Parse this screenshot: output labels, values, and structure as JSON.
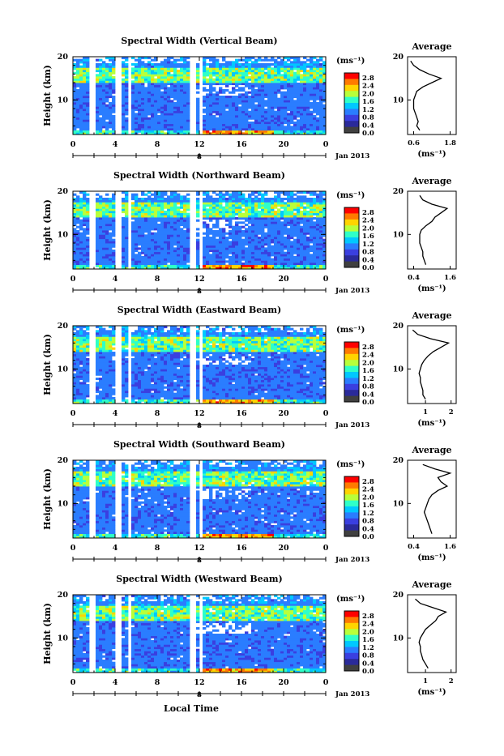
{
  "figure": {
    "xlabel": "Local Time",
    "date_label": "Jan 2013",
    "unit_label": "(ms⁻¹)",
    "average_title": "Average",
    "average_xlabel": "(ms⁻¹)",
    "ylabel": "Height (km)"
  },
  "colorbar": {
    "ticks": [
      "2.8",
      "2.4",
      "2.0",
      "1.6",
      "1.2",
      "0.8",
      "0.4",
      "0.0"
    ],
    "colors": [
      "#ff0000",
      "#ff7a00",
      "#ffd400",
      "#b8ff3a",
      "#2fffc8",
      "#00c8ff",
      "#2a7dff",
      "#3a3fe0",
      "#2a2a9a",
      "#404040"
    ]
  },
  "chart_data": [
    {
      "type": "heatmap",
      "title": "Spectral Width (Vertical Beam)",
      "x_ticks": [
        "0",
        "4",
        "8",
        "12",
        "16",
        "20",
        "0"
      ],
      "day_ticks": [
        "8"
      ],
      "xlim": [
        0,
        24
      ],
      "y_ticks": [
        "20",
        "10"
      ],
      "ylim": [
        2,
        20
      ],
      "gaps_hours": [
        [
          1.6,
          2.1
        ],
        [
          4.1,
          4.6
        ],
        [
          5.2,
          5.6
        ],
        [
          11.2,
          11.6
        ],
        [
          12.1,
          12.4
        ]
      ],
      "average": {
        "title": "Average",
        "x_ticks": [
          "0.6",
          "1.8"
        ],
        "xlim": [
          0.4,
          2.0
        ],
        "heights": [
          3,
          4,
          5,
          6,
          7,
          8,
          9,
          10,
          11,
          12,
          13,
          14,
          15,
          16,
          17,
          18,
          19
        ],
        "values": [
          0.8,
          0.7,
          0.75,
          0.7,
          0.65,
          0.6,
          0.6,
          0.6,
          0.65,
          0.7,
          0.9,
          1.2,
          1.5,
          1.1,
          0.8,
          0.6,
          0.5
        ]
      }
    },
    {
      "type": "heatmap",
      "title": "Spectral Width (Northward Beam)",
      "x_ticks": [
        "0",
        "4",
        "8",
        "12",
        "16",
        "20",
        "0"
      ],
      "day_ticks": [
        "8"
      ],
      "xlim": [
        0,
        24
      ],
      "y_ticks": [
        "20",
        "10"
      ],
      "ylim": [
        2,
        20
      ],
      "gaps_hours": [
        [
          1.6,
          2.1
        ],
        [
          4.1,
          4.6
        ],
        [
          5.2,
          5.6
        ],
        [
          11.2,
          11.6
        ],
        [
          12.1,
          12.4
        ]
      ],
      "average": {
        "title": "Average",
        "x_ticks": [
          "0.4",
          "1.6"
        ],
        "xlim": [
          0.2,
          1.8
        ],
        "heights": [
          3,
          4,
          5,
          6,
          7,
          8,
          9,
          10,
          11,
          12,
          13,
          14,
          15,
          16,
          17,
          18,
          19
        ],
        "values": [
          0.8,
          0.75,
          0.7,
          0.7,
          0.65,
          0.6,
          0.6,
          0.6,
          0.65,
          0.8,
          1.0,
          1.1,
          1.3,
          1.5,
          1.0,
          0.7,
          0.6
        ]
      }
    },
    {
      "type": "heatmap",
      "title": "Spectral Width (Eastward Beam)",
      "x_ticks": [
        "0",
        "4",
        "8",
        "12",
        "16",
        "20",
        "0"
      ],
      "day_ticks": [
        "8"
      ],
      "xlim": [
        0,
        24
      ],
      "y_ticks": [
        "20",
        "10"
      ],
      "ylim": [
        2,
        20
      ],
      "gaps_hours": [
        [
          1.6,
          2.1
        ],
        [
          4.1,
          4.6
        ],
        [
          5.2,
          5.6
        ],
        [
          11.2,
          11.6
        ],
        [
          12.1,
          12.4
        ]
      ],
      "average": {
        "title": "Average",
        "x_ticks": [
          "1",
          "2"
        ],
        "xlim": [
          0.3,
          2.2
        ],
        "heights": [
          3,
          4,
          5,
          6,
          7,
          8,
          9,
          10,
          11,
          12,
          13,
          14,
          15,
          16,
          17,
          18,
          19
        ],
        "values": [
          1.0,
          0.9,
          0.9,
          0.85,
          0.8,
          0.8,
          0.75,
          0.8,
          0.85,
          0.95,
          1.1,
          1.3,
          1.6,
          1.9,
          1.2,
          0.7,
          0.5
        ]
      }
    },
    {
      "type": "heatmap",
      "title": "Spectral Width (Southward Beam)",
      "x_ticks": [
        "0",
        "4",
        "8",
        "12",
        "16",
        "20",
        "0"
      ],
      "day_ticks": [
        "8"
      ],
      "xlim": [
        0,
        24
      ],
      "y_ticks": [
        "20",
        "10"
      ],
      "ylim": [
        2,
        20
      ],
      "gaps_hours": [
        [
          1.6,
          2.1
        ],
        [
          4.1,
          4.6
        ],
        [
          5.2,
          5.6
        ],
        [
          11.2,
          11.6
        ],
        [
          12.1,
          12.4
        ]
      ],
      "average": {
        "title": "Average",
        "x_ticks": [
          "0.4",
          "1.6"
        ],
        "xlim": [
          0.2,
          1.8
        ],
        "heights": [
          3,
          4,
          5,
          6,
          7,
          8,
          9,
          10,
          11,
          12,
          13,
          14,
          15,
          16,
          17,
          18,
          19
        ],
        "values": [
          1.0,
          0.95,
          0.9,
          0.85,
          0.8,
          0.75,
          0.8,
          0.85,
          0.9,
          1.0,
          1.2,
          1.5,
          1.3,
          1.2,
          1.6,
          1.1,
          0.7
        ]
      }
    },
    {
      "type": "heatmap",
      "title": "Spectral Width (Westward Beam)",
      "x_ticks": [
        "0",
        "4",
        "8",
        "12",
        "16",
        "20",
        "0"
      ],
      "day_ticks": [
        "8"
      ],
      "xlim": [
        0,
        24
      ],
      "y_ticks": [
        "20",
        "10"
      ],
      "ylim": [
        2,
        20
      ],
      "gaps_hours": [
        [
          1.6,
          2.1
        ],
        [
          4.1,
          4.6
        ],
        [
          5.2,
          5.6
        ],
        [
          11.2,
          11.6
        ],
        [
          12.1,
          12.4
        ]
      ],
      "average": {
        "title": "Average",
        "x_ticks": [
          "1",
          "2"
        ],
        "xlim": [
          0.3,
          2.2
        ],
        "heights": [
          3,
          4,
          5,
          6,
          7,
          8,
          9,
          10,
          11,
          12,
          13,
          14,
          15,
          16,
          17,
          18,
          19
        ],
        "values": [
          1.1,
          1.0,
          0.9,
          0.85,
          0.8,
          0.8,
          0.75,
          0.8,
          0.9,
          1.0,
          1.2,
          1.4,
          1.5,
          1.8,
          1.3,
          0.8,
          0.6
        ]
      }
    }
  ]
}
